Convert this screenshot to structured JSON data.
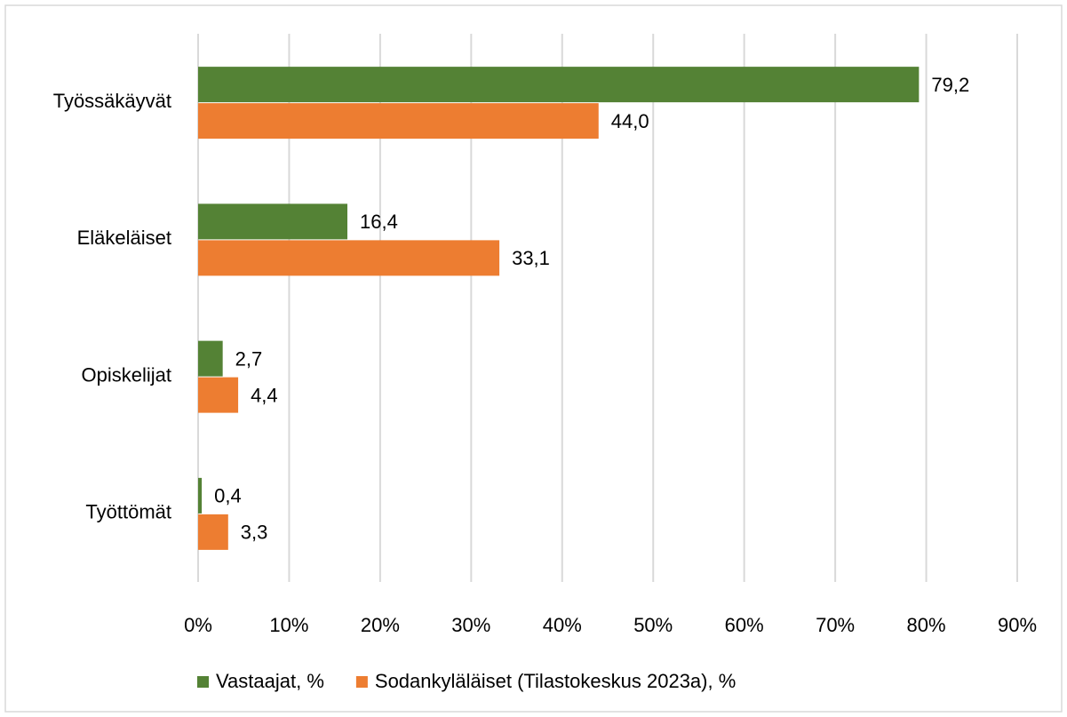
{
  "chart_data": {
    "type": "barh",
    "categories": [
      "Työssäkäyvät",
      "Eläkeläiset",
      "Opiskelijat",
      "Työttömät"
    ],
    "series": [
      {
        "name": "Vastaajat, %",
        "color": "#548235",
        "values": [
          79.2,
          16.4,
          2.7,
          0.4
        ],
        "value_labels": [
          "79,2",
          "16,4",
          "2,7",
          "0,4"
        ]
      },
      {
        "name": "Sodankyläläiset (Tilastokeskus 2023a), %",
        "color": "#ed7d31",
        "values": [
          44.0,
          33.1,
          4.4,
          3.3
        ],
        "value_labels": [
          "44,0",
          "33,1",
          "4,4",
          "3,3"
        ]
      }
    ],
    "xlim": [
      0,
      90
    ],
    "xticks": [
      {
        "value": 0,
        "label": "0%"
      },
      {
        "value": 10,
        "label": "10%"
      },
      {
        "value": 20,
        "label": "20%"
      },
      {
        "value": 30,
        "label": "30%"
      },
      {
        "value": 40,
        "label": "40%"
      },
      {
        "value": 50,
        "label": "50%"
      },
      {
        "value": 60,
        "label": "60%"
      },
      {
        "value": 70,
        "label": "70%"
      },
      {
        "value": 80,
        "label": "80%"
      },
      {
        "value": 90,
        "label": "90%"
      }
    ],
    "grid": true,
    "legend": "bottom"
  }
}
